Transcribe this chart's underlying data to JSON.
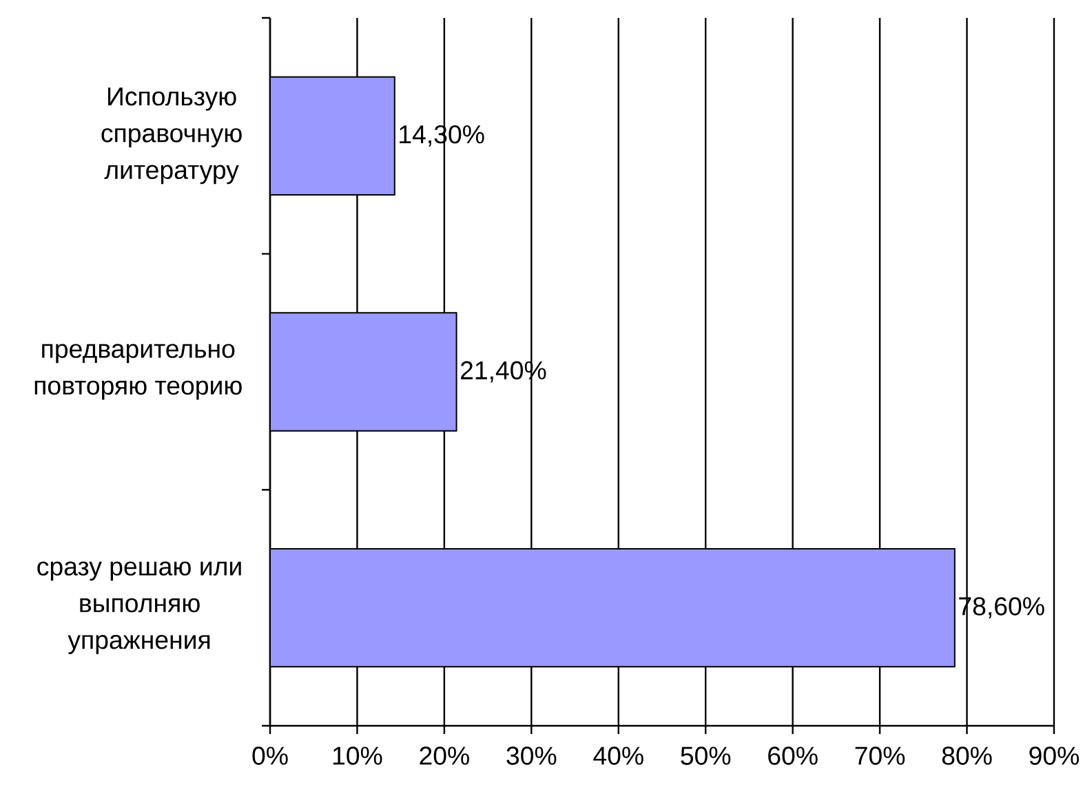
{
  "chart_data": {
    "type": "bar",
    "orientation": "horizontal",
    "categories": [
      "Использую справочную литературу",
      "предварительно повторяю теорию",
      "сразу решаю или выполняю упражнения"
    ],
    "values": [
      14.3,
      21.4,
      78.6
    ],
    "value_labels": [
      "14,30%",
      "21,40%",
      "78,60%"
    ],
    "color": "#9999ff",
    "xlim": [
      0,
      90
    ],
    "xticks": [
      {
        "value": 0,
        "label": "0%"
      },
      {
        "value": 10,
        "label": "10%"
      },
      {
        "value": 20,
        "label": "20%"
      },
      {
        "value": 30,
        "label": "30%"
      },
      {
        "value": 40,
        "label": "40%"
      },
      {
        "value": 50,
        "label": "50%"
      },
      {
        "value": 60,
        "label": "60%"
      },
      {
        "value": 70,
        "label": "70%"
      },
      {
        "value": 80,
        "label": "80%"
      },
      {
        "value": 90,
        "label": "90%"
      }
    ],
    "grid": "x"
  }
}
